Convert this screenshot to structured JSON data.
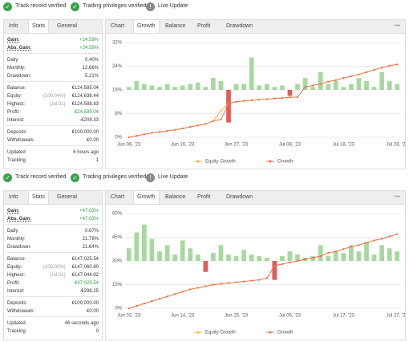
{
  "panels": [
    {
      "badges": [
        "Track record verified",
        "Trading privileges verified",
        "Live Update"
      ],
      "info_tabs": [
        "Info",
        "Stats",
        "General"
      ],
      "info_active": 1,
      "stats": [
        [
          {
            "label": "Gain:",
            "value": "+24.59%",
            "color": "#2e9e44"
          },
          {
            "label": "Abs. Gain:",
            "value": "+24.59%",
            "color": "#2e9e44"
          }
        ],
        [
          {
            "label": "Daily",
            "value": "0.40%"
          },
          {
            "label": "Monthly:",
            "value": "12.66%"
          },
          {
            "label": "Drawdown:",
            "value": "5.21%"
          }
        ],
        [
          {
            "label": "Balance:",
            "value": "€124,585.04"
          },
          {
            "label": "Equity:",
            "note": "(100.04%)",
            "value": "€124,638.44"
          },
          {
            "label": "Highest:",
            "note": "(Jul 31)",
            "value": "€124,588.83"
          },
          {
            "label": "Profit:",
            "value": "€24,585.04",
            "color": "#2e9e44"
          },
          {
            "label": "Interest:",
            "value": "-€208.33"
          }
        ],
        [
          {
            "label": "Deposits:",
            "value": "€100,000.00"
          },
          {
            "label": "Withdrawals:",
            "value": "€0.00"
          }
        ],
        [
          {
            "label": "Updated",
            "value": "6 hours ago"
          },
          {
            "label": "Tracking",
            "value": 1
          }
        ]
      ],
      "chart_tabs": [
        "Chart",
        "Growth",
        "Balance",
        "Profit",
        "Drawdown"
      ],
      "chart_active": 1,
      "menu": "•••",
      "chart_data": {
        "type": "combo",
        "categories": [
          "Jun 06, '23",
          null,
          null,
          null,
          null,
          null,
          null,
          "Jun 16, '23",
          null,
          null,
          null,
          null,
          null,
          null,
          "Jun 27, '23",
          null,
          null,
          null,
          null,
          null,
          null,
          "Jul 08, '23",
          null,
          null,
          null,
          null,
          null,
          null,
          "Jul 18, '23",
          null,
          null,
          null,
          null,
          null,
          null,
          "Jul 28, '23"
        ],
        "ylim": [
          0,
          32
        ],
        "yticks": [
          {
            "value": 0,
            "label": "0%"
          },
          {
            "value": 8,
            "label": "8%"
          },
          {
            "value": 16,
            "label": "16%"
          },
          {
            "value": 24,
            "label": "24%"
          },
          {
            "value": 32,
            "label": "32%"
          }
        ],
        "grid": true,
        "bars": {
          "color": "#a6d89f",
          "negative_color": "#e25b5b",
          "values": [
            17,
            19,
            18,
            17.5,
            17,
            18,
            17,
            17.5,
            18,
            18.5,
            17,
            20,
            19,
            5,
            18,
            18,
            27,
            17.5,
            18,
            17,
            17.5,
            14,
            18,
            20,
            17,
            22,
            18,
            19,
            17,
            18,
            20,
            19,
            17,
            22,
            19,
            18
          ]
        },
        "series": [
          {
            "name": "Equity Growth",
            "color": "#f5b041",
            "values": [
              0,
              0.5,
              1,
              1.5,
              1.8,
              2.2,
              2.5,
              3,
              3.5,
              4,
              4.5,
              5.5,
              9,
              11.5,
              12,
              12.3,
              12.5,
              12.7,
              12.9,
              13.1,
              13.3,
              13.5,
              13.6,
              17,
              17.5,
              18,
              18.8,
              19.3,
              20,
              20.6,
              21.2,
              22,
              22.8,
              23.5,
              24.2,
              24.6
            ]
          },
          {
            "name": "Growth",
            "color": "#e8704a",
            "values": [
              0,
              0.5,
              1,
              1.5,
              1.8,
              2.2,
              2.5,
              3,
              3.5,
              4,
              4.5,
              5.5,
              6,
              11.5,
              12,
              12.3,
              12.5,
              12.7,
              12.9,
              13.1,
              13.3,
              13.5,
              13.6,
              17,
              17.5,
              18,
              18.8,
              19.3,
              20,
              20.6,
              21.2,
              22,
              22.8,
              23.5,
              24.2,
              24.6
            ]
          }
        ]
      }
    },
    {
      "badges": [
        "Track record verified",
        "Trading privileges verified",
        "Live Update"
      ],
      "info_tabs": [
        "Info",
        "Stats",
        "General"
      ],
      "info_active": 1,
      "stats": [
        [
          {
            "label": "Gain:",
            "value": "+47.03%",
            "color": "#2e9e44"
          },
          {
            "label": "Abs. Gain:",
            "value": "+47.03%",
            "color": "#2e9e44"
          }
        ],
        [
          {
            "label": "Daily",
            "value": "0.67%"
          },
          {
            "label": "Monthly:",
            "value": "21.78%"
          },
          {
            "label": "Drawdown:",
            "value": "21.64%"
          }
        ],
        [
          {
            "label": "Balance:",
            "value": "€147,025.54"
          },
          {
            "label": "Equity:",
            "note": "(100.02%)",
            "value": "€147,060.80"
          },
          {
            "label": "Highest:",
            "note": "(Jul 31)",
            "value": "€147,044.92"
          },
          {
            "label": "Profit:",
            "value": "€47,025.54",
            "color": "#2e9e44"
          },
          {
            "label": "Interest:",
            "value": "-€298.25"
          }
        ],
        [
          {
            "label": "Deposits:",
            "value": "€100,000.00"
          },
          {
            "label": "Withdrawals:",
            "value": "€0.00"
          }
        ],
        [
          {
            "label": "Updated",
            "value": "46 seconds ago"
          },
          {
            "label": "Tracking",
            "value": 0
          }
        ]
      ],
      "chart_tabs": [
        "Chart",
        "Growth",
        "Balance",
        "Profit",
        "Drawdown"
      ],
      "chart_active": 1,
      "menu": "•••",
      "chart_data": {
        "type": "combo",
        "categories": [
          "Jun 03, '23",
          null,
          null,
          null,
          null,
          null,
          null,
          "Jun 14, '23",
          null,
          null,
          null,
          null,
          null,
          null,
          "Jun 25, '23",
          null,
          null,
          null,
          null,
          null,
          null,
          "Jul 05, '23",
          null,
          null,
          null,
          null,
          null,
          null,
          "Jul 17, '23",
          null,
          null,
          null,
          null,
          null,
          null,
          "Jul 27, '23"
        ],
        "ylim": [
          0,
          60
        ],
        "yticks": [
          {
            "value": 0,
            "label": "0%"
          },
          {
            "value": 15,
            "label": "15%"
          },
          {
            "value": 30,
            "label": "30%"
          },
          {
            "value": 45,
            "label": "45%"
          },
          {
            "value": 60,
            "label": "60%"
          }
        ],
        "grid": true,
        "bars": {
          "color": "#a6d89f",
          "negative_color": "#e25b5b",
          "values": [
            38,
            48,
            53,
            44,
            36,
            40,
            34,
            43,
            38,
            34,
            23,
            35,
            40,
            34,
            33,
            37,
            34,
            33,
            32,
            18,
            33,
            36,
            34,
            32,
            33,
            40,
            33,
            36,
            35,
            40,
            36,
            42,
            34,
            40,
            38,
            36
          ]
        },
        "series": [
          {
            "name": "Equity Growth",
            "color": "#f5b041",
            "values": [
              0,
              1.5,
              3,
              4.5,
              6,
              7.5,
              9,
              10.5,
              12,
              13,
              14,
              15,
              15.5,
              16,
              16.5,
              17,
              17.5,
              18,
              19,
              27,
              28,
              29,
              30,
              31,
              32,
              33,
              35,
              36,
              37.5,
              39,
              40,
              41.5,
              43,
              44,
              45.5,
              47
            ]
          },
          {
            "name": "Growth",
            "color": "#e8704a",
            "values": [
              0,
              1.5,
              3,
              4.5,
              6,
              7.5,
              9,
              10.5,
              12,
              13,
              14,
              15,
              15.5,
              16,
              16.5,
              17,
              17.5,
              18,
              19,
              27,
              28,
              29,
              30,
              31,
              32,
              33,
              35,
              36,
              37.5,
              39,
              40,
              41.5,
              43,
              44,
              45.5,
              47
            ]
          }
        ]
      }
    }
  ]
}
